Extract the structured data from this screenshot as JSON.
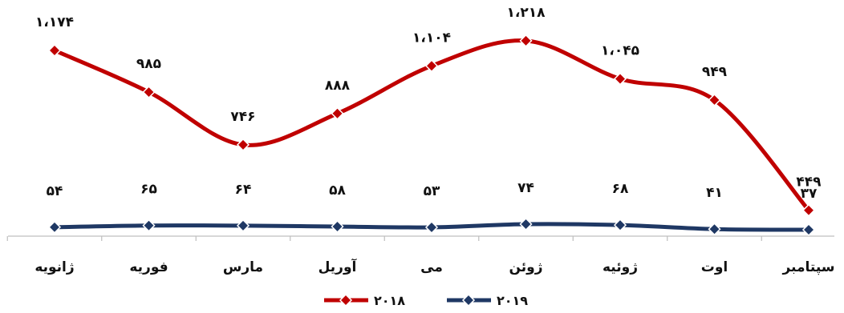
{
  "chart_data": {
    "type": "line",
    "categories": [
      "ژانویه",
      "فوریه",
      "مارس",
      "آوریل",
      "می",
      "ژوئن",
      "ژوئیه",
      "اوت",
      "سپتامبر"
    ],
    "series": [
      {
        "name": "۲۰۱۸",
        "color": "#C00000",
        "marker": "diamond",
        "values": [
          1174,
          985,
          746,
          888,
          1104,
          1218,
          1045,
          949,
          449
        ],
        "labels": [
          "۱،۱۷۴",
          "۹۸۵",
          "۷۴۶",
          "۸۸۸",
          "۱،۱۰۴",
          "۱،۲۱۸",
          "۱،۰۴۵",
          "۹۴۹",
          "۴۴۹"
        ]
      },
      {
        "name": "۲۰۱۹",
        "color": "#1F3864",
        "marker": "diamond",
        "values": [
          54,
          65,
          64,
          58,
          53,
          74,
          68,
          41,
          37
        ],
        "labels": [
          "۵۴",
          "۶۵",
          "۶۴",
          "۵۸",
          "۵۳",
          "۷۴",
          "۶۸",
          "۴۱",
          "۳۷"
        ]
      }
    ],
    "legend_position": "bottom-center",
    "grid": false
  }
}
